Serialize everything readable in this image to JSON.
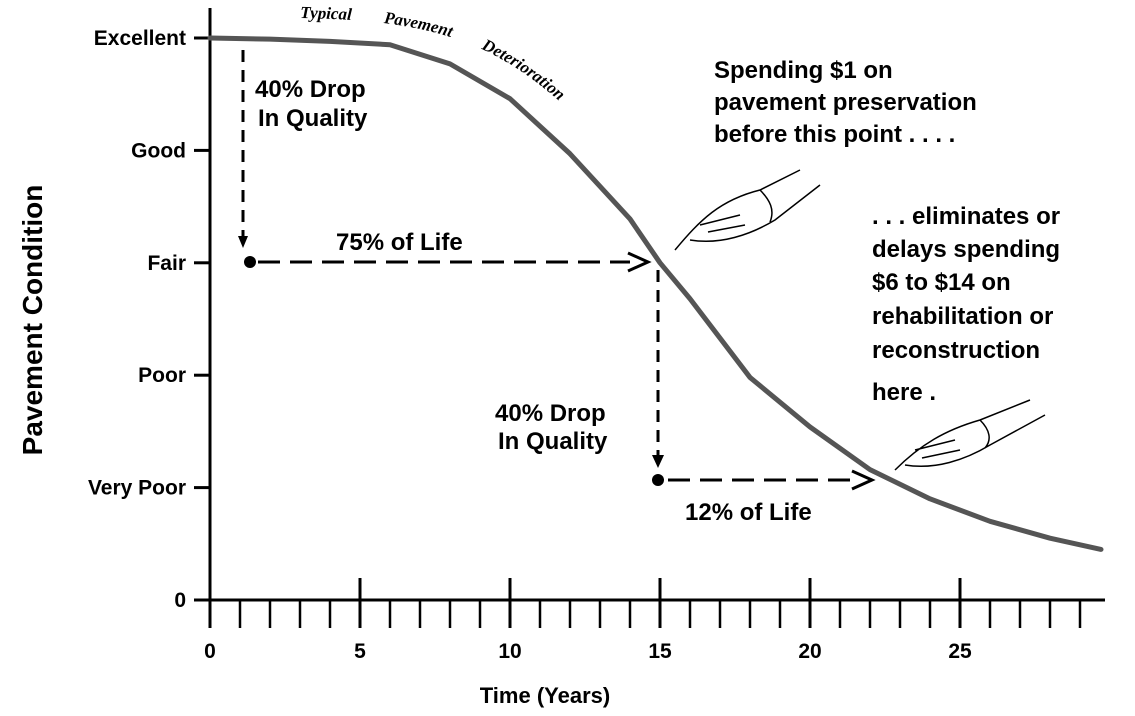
{
  "chart_data": {
    "type": "line",
    "xlabel": "Time (Years)",
    "ylabel": "Pavement Condition",
    "curve_label": "Typical Pavement Deterioration",
    "xlim": [
      0,
      30
    ],
    "ylim": [
      0,
      5
    ],
    "xticks": [
      0,
      5,
      10,
      15,
      20,
      25
    ],
    "x_minor_ticks": [
      1,
      2,
      3,
      4,
      6,
      7,
      8,
      9,
      11,
      12,
      13,
      14,
      16,
      17,
      18,
      19,
      21,
      22,
      23,
      24,
      26,
      27,
      28,
      29
    ],
    "yticks": [
      0,
      {
        "value": 1,
        "label": "Very Poor"
      },
      {
        "value": 2,
        "label": "Poor"
      },
      {
        "value": 3,
        "label": "Fair"
      },
      {
        "value": 4,
        "label": "Good"
      },
      {
        "value": 5,
        "label": "Excellent"
      }
    ],
    "series": [
      {
        "color": "#555555",
        "x": [
          0,
          2,
          4,
          6,
          8,
          10,
          12,
          14,
          15,
          16,
          18,
          20,
          22,
          24,
          26,
          28,
          29.7
        ],
        "values": [
          5,
          4.99,
          4.97,
          4.94,
          4.77,
          4.46,
          3.97,
          3.39,
          3,
          2.68,
          1.98,
          1.54,
          1.16,
          0.9,
          0.7,
          0.55,
          0.45
        ]
      }
    ],
    "annotations": {
      "drop1": [
        "40% Drop",
        "In Quality"
      ],
      "life1": "75% of Life",
      "drop2": [
        "40% Drop",
        "In Quality"
      ],
      "life2": "12% of Life",
      "spending": [
        "Spending $1 on",
        "pavement preservation",
        "before this point . . . ."
      ],
      "eliminates": [
        ". . . eliminates or",
        "delays spending",
        "$6 to $14 on",
        "rehabilitation or",
        "reconstruction",
        "here ."
      ]
    }
  }
}
